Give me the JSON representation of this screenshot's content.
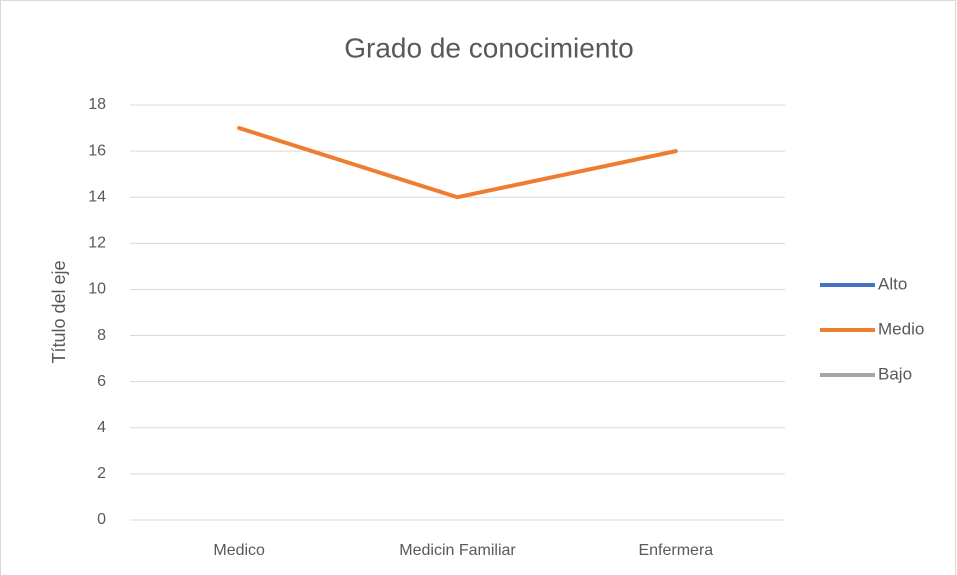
{
  "chart_data": {
    "type": "line",
    "title": "Grado de conocimiento",
    "y_label": "Título del eje",
    "categories": [
      "Medico",
      "Medicin Familiar",
      "Enfermera"
    ],
    "series": [
      {
        "name": "Alto",
        "color": "#4472c4",
        "values": [
          null,
          null,
          null
        ]
      },
      {
        "name": "Medio",
        "color": "#ed7d31",
        "values": [
          17,
          14,
          16
        ]
      },
      {
        "name": "Bajo",
        "color": "#a5a5a5",
        "values": [
          null,
          null,
          null
        ]
      }
    ],
    "ylim": [
      0,
      18
    ],
    "yticks": [
      0,
      2,
      4,
      6,
      8,
      10,
      12,
      14,
      16,
      18
    ],
    "grid": true,
    "legend": "right"
  }
}
